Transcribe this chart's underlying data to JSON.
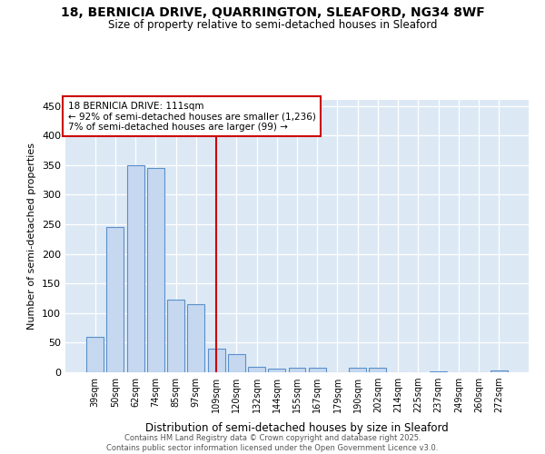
{
  "title_line1": "18, BERNICIA DRIVE, QUARRINGTON, SLEAFORD, NG34 8WF",
  "title_line2": "Size of property relative to semi-detached houses in Sleaford",
  "xlabel": "Distribution of semi-detached houses by size in Sleaford",
  "ylabel": "Number of semi-detached properties",
  "categories": [
    "39sqm",
    "50sqm",
    "62sqm",
    "74sqm",
    "85sqm",
    "97sqm",
    "109sqm",
    "120sqm",
    "132sqm",
    "144sqm",
    "155sqm",
    "167sqm",
    "179sqm",
    "190sqm",
    "202sqm",
    "214sqm",
    "225sqm",
    "237sqm",
    "249sqm",
    "260sqm",
    "272sqm"
  ],
  "values": [
    60,
    245,
    350,
    345,
    123,
    115,
    40,
    30,
    9,
    6,
    7,
    7,
    0,
    8,
    8,
    0,
    0,
    2,
    0,
    0,
    3
  ],
  "bar_color": "#c5d8f0",
  "bar_edge_color": "#5b8fc9",
  "vline_x": 6,
  "annotation_title": "18 BERNICIA DRIVE: 111sqm",
  "annotation_line1": "← 92% of semi-detached houses are smaller (1,236)",
  "annotation_line2": "7% of semi-detached houses are larger (99) →",
  "annotation_box_color": "#ffffff",
  "annotation_box_edge": "#cc0000",
  "vline_color": "#cc0000",
  "ylim": [
    0,
    460
  ],
  "yticks": [
    0,
    50,
    100,
    150,
    200,
    250,
    300,
    350,
    400,
    450
  ],
  "background_color": "#dce9f5",
  "footer_line1": "Contains HM Land Registry data © Crown copyright and database right 2025.",
  "footer_line2": "Contains public sector information licensed under the Open Government Licence v3.0."
}
